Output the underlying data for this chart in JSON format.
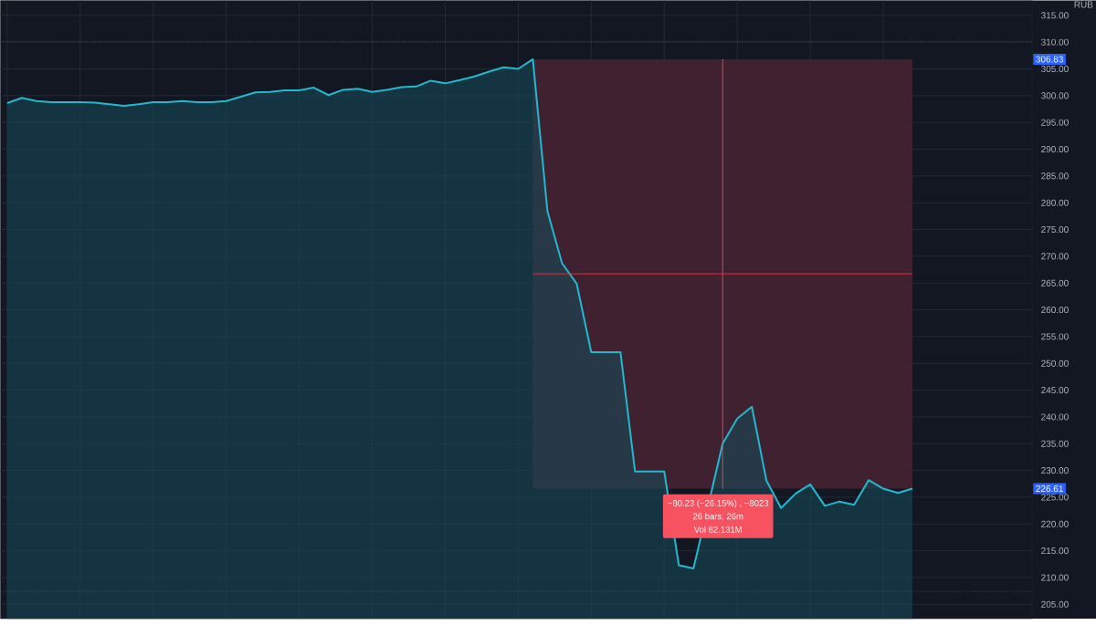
{
  "chart_data": {
    "type": "area",
    "categories": [
      null,
      null,
      null,
      null,
      null,
      null,
      null,
      null,
      null,
      null,
      null,
      null,
      null,
      null,
      null,
      null,
      null,
      null,
      null,
      null,
      null,
      null,
      null,
      null,
      null,
      null,
      null,
      null,
      null,
      null,
      null,
      null,
      null,
      null,
      null,
      null,
      null,
      null,
      null,
      null,
      null,
      null,
      null,
      null,
      null,
      null,
      null,
      null,
      null,
      null,
      null,
      null,
      null,
      null,
      null,
      null,
      null,
      null,
      null,
      null,
      null,
      null,
      null
    ],
    "values": [
      298.6,
      299.6,
      299.0,
      298.8,
      298.8,
      298.8,
      298.7,
      298.4,
      298.1,
      298.4,
      298.8,
      298.8,
      299.0,
      298.8,
      298.8,
      299.0,
      299.8,
      300.6,
      300.7,
      301.0,
      301.0,
      301.5,
      300.1,
      301.1,
      301.3,
      300.7,
      301.1,
      301.6,
      301.7,
      302.8,
      302.3,
      302.9,
      303.6,
      304.5,
      305.3,
      305.0,
      306.8,
      278.4,
      268.7,
      264.9,
      252.1,
      252.1,
      252.1,
      229.8,
      229.8,
      229.8,
      212.3,
      211.7,
      null,
      235.0,
      239.7,
      241.9,
      228.1,
      223.0,
      225.7,
      227.4,
      223.4,
      224.2,
      223.6,
      228.2,
      226.6,
      225.8,
      226.6
    ],
    "color": "#22b8cf",
    "ylim": [
      202.3,
      317.8
    ],
    "yticks": [
      {
        "value": 205,
        "label": "205.00"
      },
      {
        "value": 210,
        "label": "210.00"
      },
      {
        "value": 215,
        "label": "215.00"
      },
      {
        "value": 220,
        "label": "220.00"
      },
      {
        "value": 225,
        "label": "225.00"
      },
      {
        "value": 230,
        "label": "230.00"
      },
      {
        "value": 235,
        "label": "235.00"
      },
      {
        "value": 240,
        "label": "240.00"
      },
      {
        "value": 245,
        "label": "245.00"
      },
      {
        "value": 250,
        "label": "250.00"
      },
      {
        "value": 255,
        "label": "255.00"
      },
      {
        "value": 260,
        "label": "260.00"
      },
      {
        "value": 265,
        "label": "265.00"
      },
      {
        "value": 270,
        "label": "270.00"
      },
      {
        "value": 275,
        "label": "275.00"
      },
      {
        "value": 280,
        "label": "280.00"
      },
      {
        "value": 285,
        "label": "285.00"
      },
      {
        "value": 290,
        "label": "290.00"
      },
      {
        "value": 295,
        "label": "295.00"
      },
      {
        "value": 300,
        "label": "300.00"
      },
      {
        "value": 305,
        "label": "305.00"
      },
      {
        "value": 310,
        "label": "310.00"
      },
      {
        "value": 315,
        "label": "315.00"
      }
    ],
    "grid": true,
    "ref_lines": [
      {
        "axis": "y",
        "value": 266.72,
        "color": "#f23645",
        "line_style": "solid"
      },
      {
        "axis": "y",
        "value": 310.1,
        "color": "#5d606b",
        "line_style": "dotted"
      },
      {
        "axis": "y",
        "value": 207.4,
        "color": "#5d606b",
        "line_style": "dotted"
      }
    ],
    "annotations": [
      "RUB",
      "306.83",
      "226.61",
      "−80.23 (−26.15%) , −8023",
      "26 bars, 26m",
      "Vol 82.131M"
    ]
  }
}
